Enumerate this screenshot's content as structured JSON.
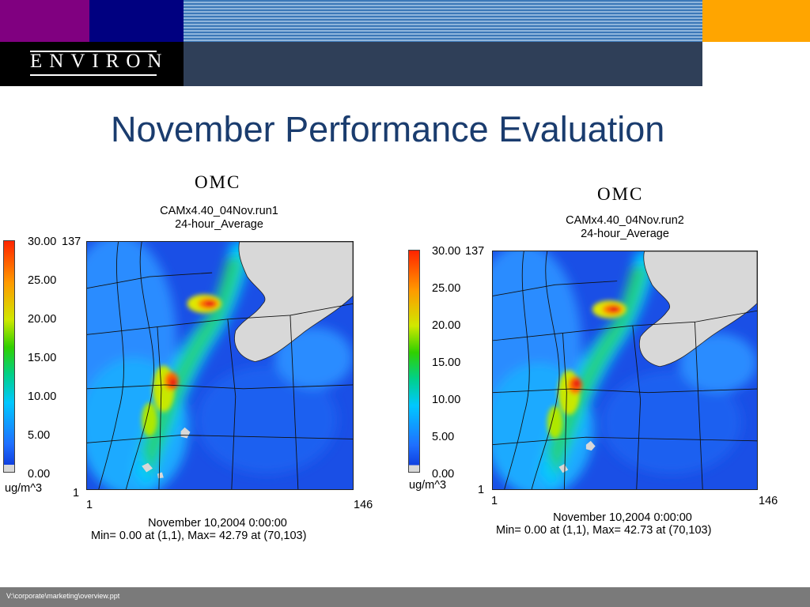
{
  "header": {
    "logo_text": "ENVIRON",
    "colors": {
      "purple": "#800080",
      "navy": "#000080",
      "orange": "#ffa500",
      "slate": "#2f3f58"
    }
  },
  "title": "November Performance Evaluation",
  "panels": [
    {
      "species": "OMC",
      "run": "CAMx4.40_04Nov.run1",
      "period": "24-hour_Average",
      "scale_ticks": [
        "30.00",
        "25.00",
        "20.00",
        "15.00",
        "10.00",
        "5.00",
        "0.00"
      ],
      "scale_max_corner": "137",
      "units": "ug/m^3",
      "axis_y_min": "1",
      "axis_x_min": "1",
      "axis_x_max": "146",
      "timestamp": "November 10,2004 0:00:00",
      "minmax": "Min=    0.00 at (1,1), Max=   42.79 at (70,103)"
    },
    {
      "species": "OMC",
      "run": "CAMx4.40_04Nov.run2",
      "period": "24-hour_Average",
      "scale_ticks": [
        "30.00",
        "25.00",
        "20.00",
        "15.00",
        "10.00",
        "5.00",
        "0.00"
      ],
      "scale_max_corner": "137",
      "units": "ug/m^3",
      "axis_y_min": "1",
      "axis_x_min": "1",
      "axis_x_max": "146",
      "timestamp": "November 10,2004 0:00:00",
      "minmax": "Min=    0.00 at (1,1), Max=   42.73 at (70,103)"
    }
  ],
  "footer": {
    "path": "V:\\corporate\\marketing\\overview.ppt"
  }
}
